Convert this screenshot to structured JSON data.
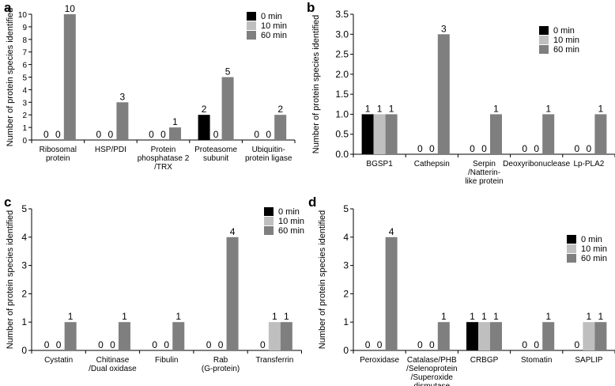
{
  "series_names": [
    "0 min",
    "10 min",
    "60 min"
  ],
  "colors": {
    "s0": "#000000",
    "s1": "#bfbfbf",
    "s2": "#7f7f7f",
    "axis": "#000000"
  },
  "chart_data": [
    {
      "panel": "a",
      "type": "bar",
      "ylabel": "Number of protein species identified",
      "ylim": [
        0,
        10
      ],
      "yticks": [
        0,
        1,
        2,
        3,
        4,
        5,
        6,
        7,
        8,
        9,
        10
      ],
      "categories": [
        [
          "Ribosomal",
          "protein"
        ],
        [
          "HSP/PDI"
        ],
        [
          "Protein",
          "phosphatase 2",
          "/TRX"
        ],
        [
          "Proteasome",
          "subunit"
        ],
        [
          "Ubiquitin-",
          "protein ligase"
        ]
      ],
      "series": [
        {
          "name": "0 min",
          "values": [
            0,
            0,
            0,
            2,
            0
          ]
        },
        {
          "name": "10 min",
          "values": [
            0,
            0,
            0,
            0,
            0
          ]
        },
        {
          "name": "60 min",
          "values": [
            10,
            3,
            1,
            5,
            2
          ]
        }
      ],
      "value_labels": [
        [
          "0",
          "0",
          "10"
        ],
        [
          "0",
          "0",
          "3"
        ],
        [
          "0",
          "0",
          "1"
        ],
        [
          "2",
          "0",
          "5"
        ],
        [
          "0",
          "0",
          "2"
        ]
      ],
      "legend": "top-right"
    },
    {
      "panel": "b",
      "type": "bar",
      "ylabel": "Number of protein species identified",
      "ylim": [
        0,
        3.5
      ],
      "yticks": [
        0,
        0.5,
        1,
        1.5,
        2,
        2.5,
        3,
        3.5
      ],
      "categories": [
        [
          "BGSP1"
        ],
        [
          "Cathepsin"
        ],
        [
          "Serpin",
          "/Natterin-",
          "like protein"
        ],
        [
          "Deoxyribonuclease"
        ],
        [
          "Lp-PLA2"
        ]
      ],
      "series": [
        {
          "name": "0 min",
          "values": [
            1,
            0,
            0,
            0,
            0
          ]
        },
        {
          "name": "10 min",
          "values": [
            1,
            0,
            0,
            0,
            0
          ]
        },
        {
          "name": "60 min",
          "values": [
            1,
            3,
            1,
            1,
            1
          ]
        }
      ],
      "value_labels": [
        [
          "1",
          "1",
          "1"
        ],
        [
          "0",
          "0",
          "3"
        ],
        [
          "0",
          "0",
          "1"
        ],
        [
          "0",
          "0",
          "1"
        ],
        [
          "0",
          "0",
          "1"
        ]
      ],
      "legend": "top-right"
    },
    {
      "panel": "c",
      "type": "bar",
      "ylabel": "Number of protein species identified",
      "ylim": [
        0,
        5
      ],
      "yticks": [
        0,
        1,
        2,
        3,
        4,
        5
      ],
      "categories": [
        [
          "Cystatin"
        ],
        [
          "Chitinase",
          "/Dual oxidase"
        ],
        [
          "Fibulin"
        ],
        [
          "Rab",
          "(G-protein)"
        ],
        [
          "Transferrin"
        ]
      ],
      "series": [
        {
          "name": "0 min",
          "values": [
            0,
            0,
            0,
            0,
            0
          ]
        },
        {
          "name": "10 min",
          "values": [
            0,
            0,
            0,
            0,
            1
          ]
        },
        {
          "name": "60 min",
          "values": [
            1,
            1,
            1,
            4,
            1
          ]
        }
      ],
      "value_labels": [
        [
          "0",
          "0",
          "1"
        ],
        [
          "0",
          "0",
          "1"
        ],
        [
          "0",
          "0",
          "1"
        ],
        [
          "0",
          "0",
          "4"
        ],
        [
          "0",
          "1",
          "1"
        ]
      ],
      "legend": "top-right"
    },
    {
      "panel": "d",
      "type": "bar",
      "ylabel": "Number of protein species identified",
      "ylim": [
        0,
        5
      ],
      "yticks": [
        0,
        1,
        2,
        3,
        4,
        5
      ],
      "categories": [
        [
          "Peroxidase"
        ],
        [
          "Catalase/PHB",
          "/Selenoprotein",
          "/Superoxide",
          "dismutase"
        ],
        [
          "CRBGP"
        ],
        [
          "Stomatin"
        ],
        [
          "SAPLIP"
        ]
      ],
      "series": [
        {
          "name": "0 min",
          "values": [
            0,
            0,
            1,
            0,
            0
          ]
        },
        {
          "name": "10 min",
          "values": [
            0,
            0,
            1,
            0,
            1
          ]
        },
        {
          "name": "60 min",
          "values": [
            4,
            1,
            1,
            1,
            1
          ]
        }
      ],
      "value_labels": [
        [
          "0",
          "0",
          "4"
        ],
        [
          "0",
          "0",
          "1"
        ],
        [
          "1",
          "1",
          "1"
        ],
        [
          "0",
          "0",
          "1"
        ],
        [
          "0",
          "1",
          "1"
        ]
      ],
      "legend": "top-right"
    }
  ]
}
